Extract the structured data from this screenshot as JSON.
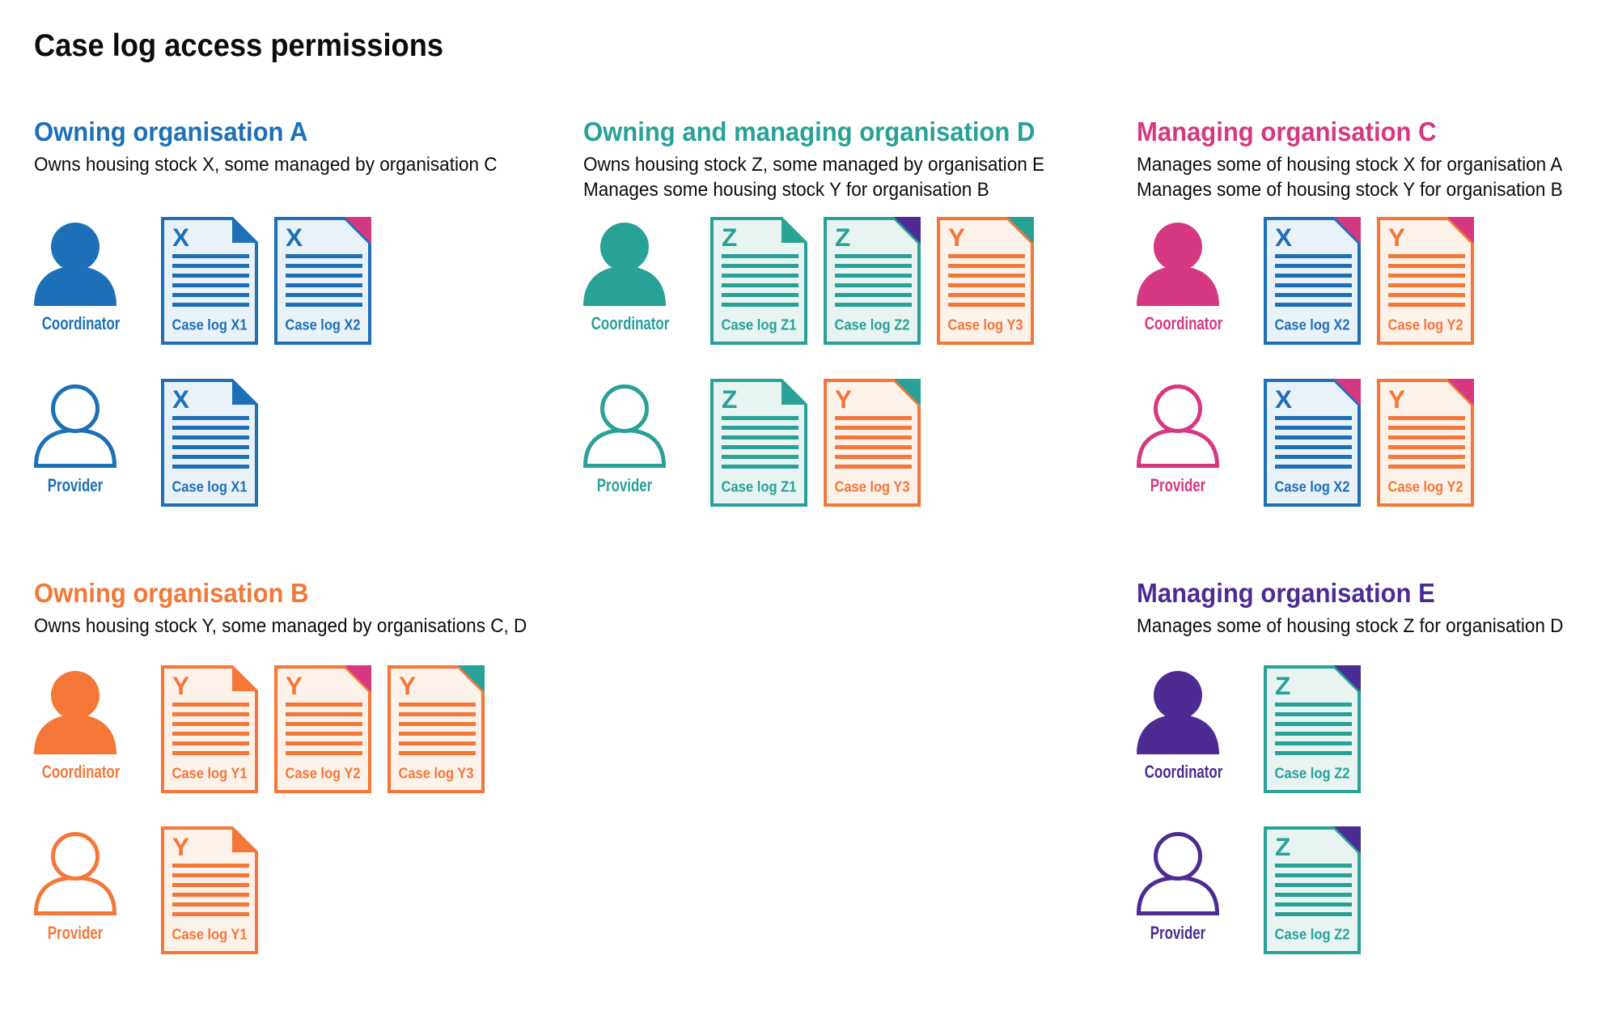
{
  "title": "Case log access permissions",
  "colors": {
    "blue": "#1d70b8",
    "teal": "#28a197",
    "orange": "#f47738",
    "pink": "#d53880",
    "purple": "#4c2c92",
    "text": "#0b0c0c",
    "tint_blue": "#eaf2f9",
    "tint_teal": "#e7f4f2",
    "tint_orange": "#fdf2ea"
  },
  "sections": [
    {
      "key": "org-a",
      "color": "blue",
      "heading": "Owning organisation A",
      "description": [
        "Owns housing stock X, some managed by organisation C"
      ],
      "rows": [
        {
          "role": "Coordinator",
          "variant": "filled",
          "docs": [
            {
              "letter": "X",
              "label": "Case log X1",
              "doc": "blue",
              "fold": "blue"
            },
            {
              "letter": "X",
              "label": "Case log X2",
              "doc": "blue",
              "fold": "pink"
            }
          ]
        },
        {
          "role": "Provider",
          "variant": "outline",
          "docs": [
            {
              "letter": "X",
              "label": "Case log X1",
              "doc": "blue",
              "fold": "blue"
            }
          ]
        }
      ]
    },
    {
      "key": "org-d",
      "color": "teal",
      "heading": "Owning and managing organisation D",
      "description": [
        "Owns housing stock Z, some managed by organisation E",
        "Manages some housing stock Y for organisation B"
      ],
      "rows": [
        {
          "role": "Coordinator",
          "variant": "filled",
          "docs": [
            {
              "letter": "Z",
              "label": "Case log Z1",
              "doc": "teal",
              "fold": "teal"
            },
            {
              "letter": "Z",
              "label": "Case log Z2",
              "doc": "teal",
              "fold": "purple"
            },
            {
              "letter": "Y",
              "label": "Case log Y3",
              "doc": "orange",
              "fold": "teal"
            }
          ]
        },
        {
          "role": "Provider",
          "variant": "outline",
          "docs": [
            {
              "letter": "Z",
              "label": "Case log Z1",
              "doc": "teal",
              "fold": "teal"
            },
            {
              "letter": "Y",
              "label": "Case log Y3",
              "doc": "orange",
              "fold": "teal"
            }
          ]
        }
      ]
    },
    {
      "key": "org-c",
      "color": "pink",
      "heading": "Managing organisation C",
      "description": [
        "Manages some of housing stock X for organisation A",
        "Manages some of housing stock Y for organisation B"
      ],
      "rows": [
        {
          "role": "Coordinator",
          "variant": "filled",
          "docs": [
            {
              "letter": "X",
              "label": "Case log X2",
              "doc": "blue",
              "fold": "pink"
            },
            {
              "letter": "Y",
              "label": "Case log Y2",
              "doc": "orange",
              "fold": "pink"
            }
          ]
        },
        {
          "role": "Provider",
          "variant": "outline",
          "docs": [
            {
              "letter": "X",
              "label": "Case log X2",
              "doc": "blue",
              "fold": "pink"
            },
            {
              "letter": "Y",
              "label": "Case log Y2",
              "doc": "orange",
              "fold": "pink"
            }
          ]
        }
      ]
    },
    {
      "key": "org-b",
      "color": "orange",
      "heading": "Owning organisation B",
      "description": [
        "Owns housing stock Y, some managed by organisations C, D"
      ],
      "rows": [
        {
          "role": "Coordinator",
          "variant": "filled",
          "docs": [
            {
              "letter": "Y",
              "label": "Case log Y1",
              "doc": "orange",
              "fold": "orange"
            },
            {
              "letter": "Y",
              "label": "Case log Y2",
              "doc": "orange",
              "fold": "pink"
            },
            {
              "letter": "Y",
              "label": "Case log Y3",
              "doc": "orange",
              "fold": "teal"
            }
          ]
        },
        {
          "role": "Provider",
          "variant": "outline",
          "docs": [
            {
              "letter": "Y",
              "label": "Case log Y1",
              "doc": "orange",
              "fold": "orange"
            }
          ]
        }
      ]
    },
    {
      "key": "org-e",
      "color": "purple",
      "heading": "Managing organisation E",
      "description": [
        "Manages some of housing stock Z for organisation D"
      ],
      "rows": [
        {
          "role": "Coordinator",
          "variant": "filled",
          "docs": [
            {
              "letter": "Z",
              "label": "Case log Z2",
              "doc": "teal",
              "fold": "purple"
            }
          ]
        },
        {
          "role": "Provider",
          "variant": "outline",
          "docs": [
            {
              "letter": "Z",
              "label": "Case log Z2",
              "doc": "teal",
              "fold": "purple"
            }
          ]
        }
      ]
    }
  ]
}
